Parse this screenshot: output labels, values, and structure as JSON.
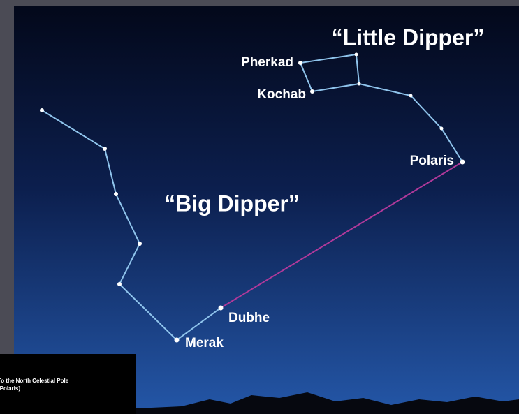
{
  "titles": {
    "little_dipper": "“Little Dipper”",
    "big_dipper": "“Big Dipper”"
  },
  "stars": {
    "pherkad": "Pherkad",
    "kochab": "Kochab",
    "polaris": "Polaris",
    "dubhe": "Dubhe",
    "merak": "Merak"
  },
  "inset": {
    "line1": "To the North Celestial Pole",
    "line2": "(Polaris)"
  }
}
